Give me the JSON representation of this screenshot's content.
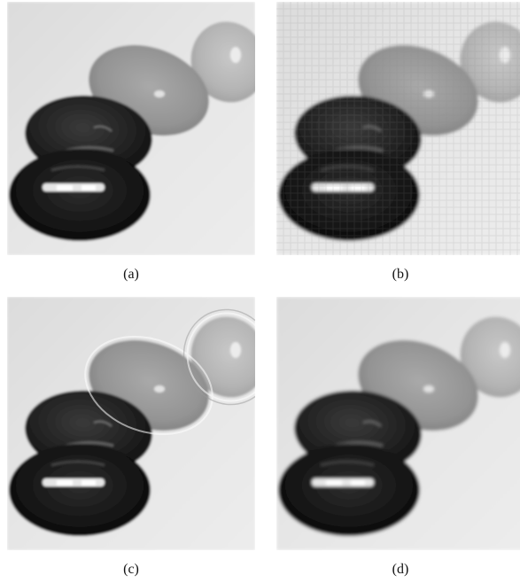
{
  "figure": {
    "panels": [
      {
        "id": "a",
        "caption": "(a)",
        "rendering": "original"
      },
      {
        "id": "b",
        "caption": "(b)",
        "rendering": "pixelated"
      },
      {
        "id": "c",
        "caption": "(c)",
        "rendering": "ringing"
      },
      {
        "id": "d",
        "caption": "(d)",
        "rendering": "smooth"
      }
    ]
  }
}
